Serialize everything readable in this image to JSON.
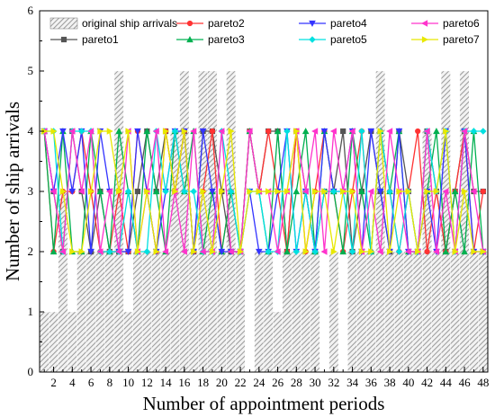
{
  "chart_data": {
    "type": "line",
    "xlabel": "Number of appointment periods",
    "ylabel": "Number of ship arrivals",
    "xlim": [
      0.5,
      48.5
    ],
    "ylim": [
      0,
      6
    ],
    "x": [
      1,
      2,
      3,
      4,
      5,
      6,
      7,
      8,
      9,
      10,
      11,
      12,
      13,
      14,
      15,
      16,
      17,
      18,
      19,
      20,
      21,
      22,
      23,
      24,
      25,
      26,
      27,
      28,
      29,
      30,
      31,
      32,
      33,
      34,
      35,
      36,
      37,
      38,
      39,
      40,
      41,
      42,
      43,
      44,
      45,
      46,
      47,
      48
    ],
    "x_ticks": [
      2,
      4,
      6,
      8,
      10,
      12,
      14,
      16,
      18,
      20,
      22,
      24,
      26,
      28,
      30,
      32,
      34,
      36,
      38,
      40,
      42,
      44,
      46,
      48
    ],
    "y_ticks": [
      0,
      1,
      2,
      3,
      4,
      5,
      6
    ],
    "original": {
      "name": "original ship arrivals",
      "values": [
        1,
        1,
        3,
        1,
        2,
        2,
        2,
        2,
        5,
        1,
        2,
        2,
        2,
        2,
        4,
        5,
        2,
        5,
        5,
        2,
        5,
        2,
        0,
        2,
        2,
        1,
        2,
        2,
        2,
        2,
        0,
        2,
        0,
        2,
        2,
        2,
        5,
        2,
        2,
        2,
        2,
        4,
        2,
        5,
        2,
        5,
        2,
        2
      ]
    },
    "series": [
      {
        "name": "pareto1",
        "color": "#555555",
        "marker": "square",
        "values": [
          4,
          3,
          2,
          4,
          3,
          2,
          3,
          2,
          2,
          2,
          3,
          4,
          3,
          4,
          3,
          4,
          2,
          4,
          4,
          3,
          2,
          2,
          4,
          3,
          4,
          4,
          2,
          4,
          3,
          2,
          3,
          3,
          4,
          2,
          3,
          4,
          3,
          2,
          4,
          3,
          2,
          4,
          3,
          2,
          3,
          4,
          3,
          3
        ]
      },
      {
        "name": "pareto2",
        "color": "#ff3333",
        "marker": "circle",
        "values": [
          4,
          2,
          3,
          3,
          4,
          3,
          2,
          2,
          3,
          2,
          4,
          3,
          2,
          4,
          3,
          4,
          2,
          3,
          4,
          2,
          3,
          2,
          4,
          3,
          4,
          3,
          2,
          4,
          2,
          3,
          4,
          3,
          2,
          3,
          4,
          2,
          4,
          3,
          2,
          3,
          4,
          2,
          3,
          2,
          3,
          4,
          2,
          3
        ]
      },
      {
        "name": "pareto3",
        "color": "#00b050",
        "marker": "triangle-up",
        "values": [
          4,
          2,
          4,
          2,
          2,
          4,
          3,
          2,
          4,
          3,
          2,
          4,
          3,
          2,
          4,
          3,
          4,
          2,
          3,
          2,
          3,
          2,
          4,
          3,
          2,
          4,
          2,
          3,
          4,
          2,
          4,
          3,
          2,
          4,
          3,
          2,
          4,
          3,
          4,
          2,
          2,
          3,
          4,
          2,
          3,
          2,
          4,
          2
        ]
      },
      {
        "name": "pareto4",
        "color": "#3333ff",
        "marker": "triangle-down",
        "values": [
          4,
          3,
          4,
          3,
          4,
          2,
          4,
          3,
          2,
          2,
          4,
          3,
          2,
          3,
          4,
          4,
          2,
          4,
          3,
          2,
          2,
          2,
          3,
          2,
          2,
          3,
          4,
          2,
          3,
          2,
          4,
          3,
          3,
          4,
          2,
          4,
          3,
          2,
          4,
          2,
          2,
          3,
          2,
          4,
          2,
          4,
          2,
          2
        ]
      },
      {
        "name": "pareto5",
        "color": "#00e0e0",
        "marker": "diamond",
        "values": [
          4,
          4,
          2,
          4,
          4,
          4,
          2,
          2,
          2,
          3,
          2,
          2,
          4,
          3,
          4,
          3,
          3,
          2,
          2,
          4,
          3,
          2,
          3,
          3,
          2,
          2,
          4,
          2,
          3,
          2,
          3,
          3,
          3,
          2,
          4,
          2,
          4,
          3,
          2,
          3,
          2,
          4,
          3,
          4,
          2,
          4,
          4,
          4
        ]
      },
      {
        "name": "pareto6",
        "color": "#ff33cc",
        "marker": "triangle-left",
        "values": [
          4,
          3,
          2,
          4,
          3,
          4,
          2,
          3,
          2,
          4,
          2,
          3,
          4,
          2,
          3,
          2,
          4,
          2,
          2,
          4,
          2,
          2,
          4,
          3,
          3,
          2,
          3,
          4,
          3,
          4,
          2,
          4,
          3,
          4,
          2,
          3,
          2,
          4,
          3,
          2,
          2,
          4,
          2,
          3,
          2,
          4,
          3,
          2
        ]
      },
      {
        "name": "pareto7",
        "color": "#e8e800",
        "marker": "triangle-right",
        "values": [
          4,
          4,
          3,
          2,
          2,
          3,
          4,
          4,
          3,
          4,
          2,
          3,
          2,
          4,
          3,
          4,
          2,
          3,
          2,
          3,
          4,
          2,
          3,
          3,
          3,
          3,
          3,
          4,
          2,
          3,
          3,
          2,
          3,
          3,
          2,
          2,
          4,
          2,
          3,
          3,
          2,
          3,
          3,
          4,
          2,
          3,
          2,
          2
        ]
      }
    ]
  }
}
